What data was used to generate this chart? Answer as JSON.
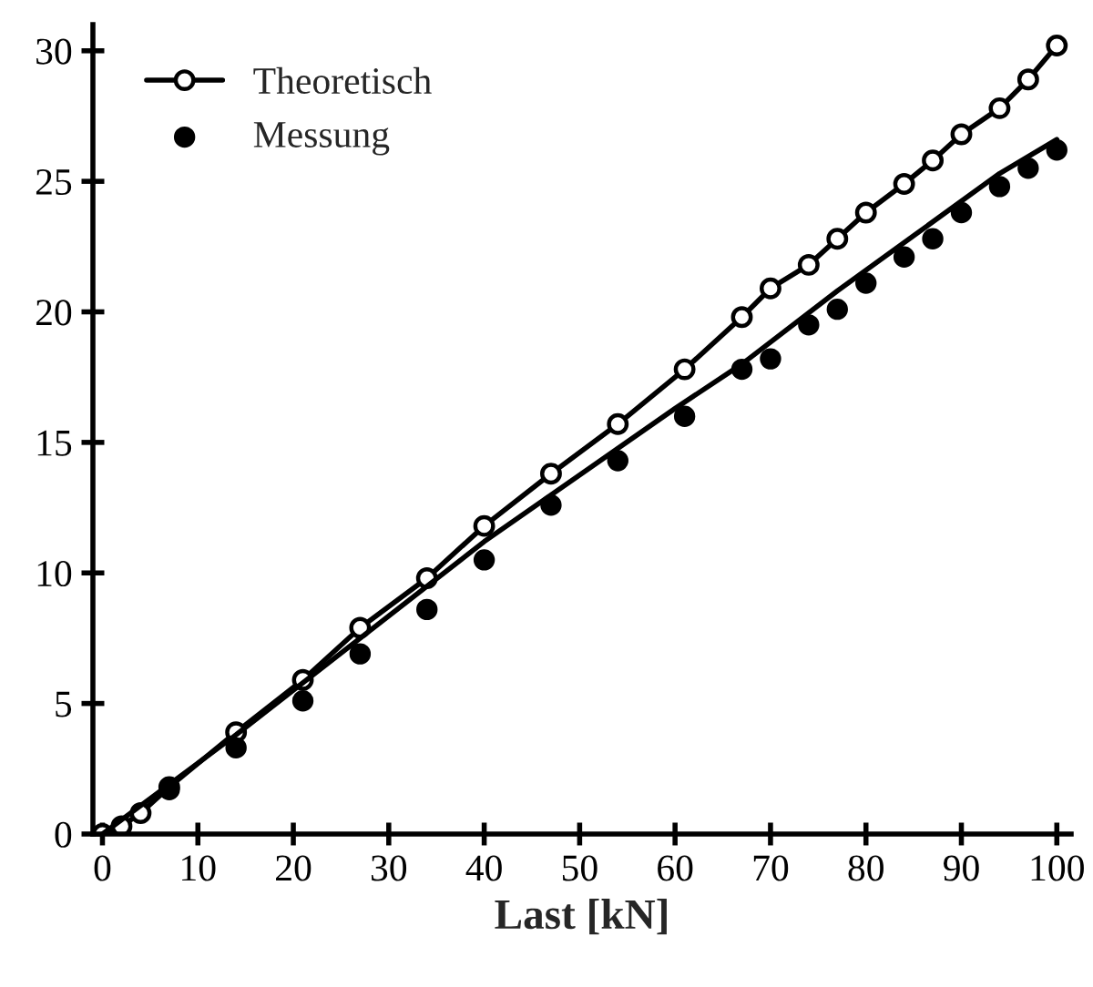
{
  "chart_data": {
    "type": "line",
    "xlabel": "Last [kN]",
    "xlim": [
      -1,
      101.5
    ],
    "ylim": [
      0,
      31
    ],
    "xticks": [
      0,
      10,
      20,
      30,
      40,
      50,
      60,
      70,
      80,
      90,
      100
    ],
    "yticks": [
      0,
      5,
      10,
      15,
      20,
      25,
      30
    ],
    "grid": false,
    "legend": "top left",
    "series": [
      {
        "name": "Theoretisch",
        "marker": "circle",
        "color": "#000000",
        "x": [
          0,
          2,
          4,
          7,
          14,
          21,
          27,
          34,
          40,
          47,
          54,
          61,
          67,
          70,
          74,
          77,
          80,
          84,
          87,
          90,
          94,
          97,
          100
        ],
        "values": [
          0,
          0.3,
          0.8,
          1.8,
          3.9,
          5.9,
          7.9,
          9.8,
          11.8,
          13.8,
          15.7,
          17.8,
          19.8,
          20.9,
          21.8,
          22.8,
          23.8,
          24.9,
          25.8,
          26.8,
          27.8,
          28.9,
          30.2
        ]
      },
      {
        "name": "Messung",
        "type": "scatter",
        "marker": "circle",
        "color": "#000000",
        "x": [
          7,
          14,
          21,
          27,
          34,
          40,
          47,
          54,
          61,
          67,
          70,
          74,
          77,
          80,
          84,
          87,
          90,
          94,
          97,
          100
        ],
        "values": [
          1.7,
          3.3,
          5.1,
          6.9,
          8.6,
          10.5,
          12.6,
          14.3,
          16.0,
          17.8,
          18.2,
          19.5,
          20.1,
          21.1,
          22.1,
          22.8,
          23.8,
          24.8,
          25.5,
          26.2
        ]
      },
      {
        "type": "line",
        "marker": "none",
        "color": "#000000",
        "x": [
          0,
          14,
          40,
          60,
          67,
          77,
          94,
          100
        ],
        "values": [
          0,
          3.8,
          11.2,
          16.3,
          18.0,
          20.8,
          25.3,
          26.6
        ]
      }
    ]
  }
}
